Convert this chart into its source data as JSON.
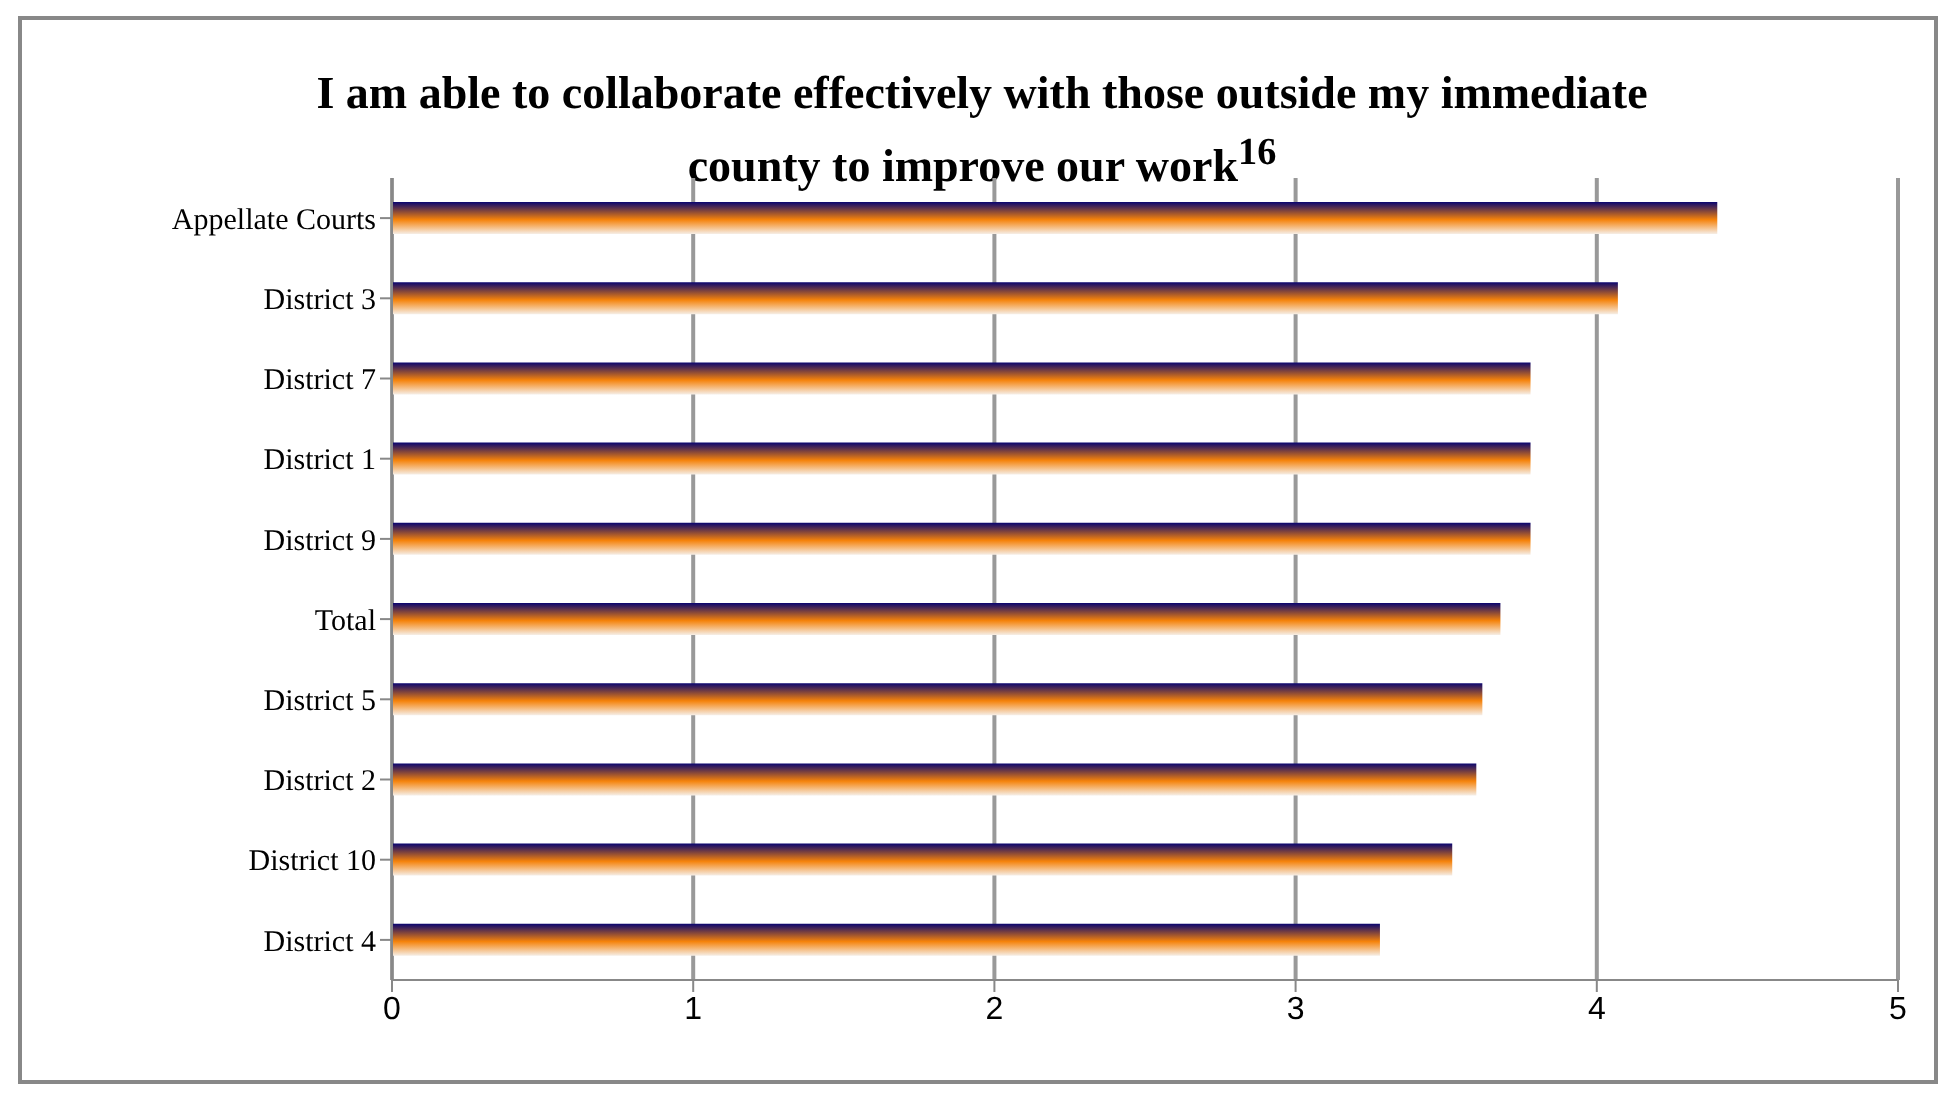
{
  "chart_data": {
    "type": "bar",
    "orientation": "horizontal",
    "title": "I am able to collaborate effectively with those outside my immediate county to improve our work$^{16}$",
    "categories": [
      "Appellate Courts",
      "District 3",
      "District 7",
      "District 1",
      "District 9",
      "Total",
      "District 5",
      "District 2",
      "District 10",
      "District 4"
    ],
    "values": [
      4.4,
      4.07,
      3.78,
      3.78,
      3.78,
      3.68,
      3.62,
      3.6,
      3.52,
      3.28
    ],
    "color": "#f5820a",
    "xlim": [
      0,
      5
    ],
    "xticks": [
      0,
      1,
      2,
      3,
      4,
      5
    ],
    "grid": "x",
    "legend": false
  }
}
